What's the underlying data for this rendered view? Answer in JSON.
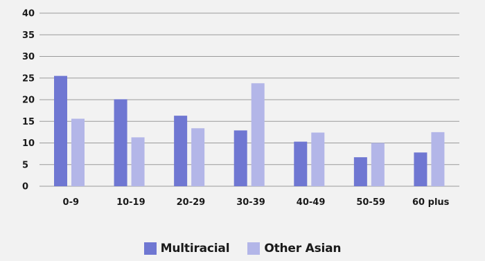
{
  "chart_data": {
    "type": "bar",
    "categories": [
      "0-9",
      "10-19",
      "20-29",
      "30-39",
      "40-49",
      "50-59",
      "60 plus"
    ],
    "series": [
      {
        "name": "Multiracial",
        "color": "#6f77d2",
        "values": [
          25.5,
          20.1,
          16.3,
          12.9,
          10.3,
          6.7,
          7.8
        ]
      },
      {
        "name": "Other Asian",
        "color": "#b3b6e8",
        "values": [
          15.6,
          11.3,
          13.4,
          23.8,
          12.4,
          10.0,
          12.5
        ]
      }
    ],
    "ylim": [
      0,
      40
    ],
    "yticks": [
      "0",
      "5",
      "10",
      "15",
      "20",
      "25",
      "30",
      "35",
      "40"
    ],
    "title": "",
    "xlabel": "",
    "ylabel": "",
    "grid": true,
    "legend_position": "bottom-center"
  },
  "colors": {
    "background": "#f2f2f2",
    "gridline": "#9a9a9a",
    "text": "#1a1a1a"
  }
}
